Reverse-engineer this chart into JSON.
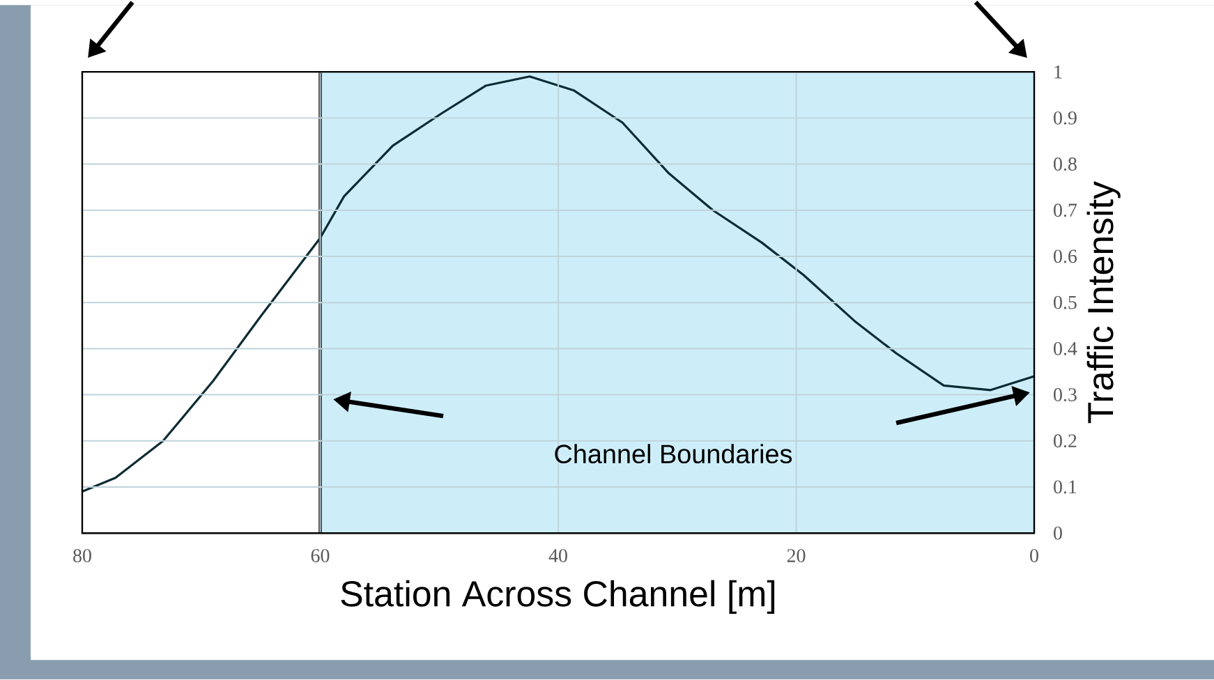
{
  "chart_data": {
    "type": "line",
    "xlabel": "Station Across Channel [m]",
    "ylabel": "Traffic Intensity",
    "x": [
      80,
      77.2,
      73.2,
      69,
      65,
      60,
      58,
      53.9,
      49.8,
      46.1,
      42.4,
      38.7,
      34.6,
      30.7,
      27,
      22.9,
      19.4,
      15.1,
      11.6,
      7.6,
      3.7,
      0
    ],
    "series": [
      {
        "color": "#0d2b33",
        "values": [
          0.09,
          0.12,
          0.2,
          0.33,
          0.47,
          0.64,
          0.73,
          0.84,
          0.91,
          0.97,
          0.99,
          0.96,
          0.89,
          0.78,
          0.7,
          0.63,
          0.56,
          0.46,
          0.39,
          0.32,
          0.31,
          0.34
        ]
      }
    ],
    "xlim": [
      80,
      0
    ],
    "xticks": [
      80,
      60,
      40,
      20,
      0
    ],
    "ylim": [
      0,
      1
    ],
    "yticks": [
      0,
      0.1,
      0.2,
      0.3,
      0.4,
      0.5,
      0.6,
      0.7,
      0.8,
      0.9,
      1
    ],
    "grid": true,
    "marker": "none",
    "line_style": "solid",
    "ref_lines": [
      {
        "axis": "x",
        "value": 60,
        "color": "#000000"
      }
    ],
    "bands": [
      {
        "axis": "x",
        "from": 60,
        "to": 0,
        "color": "#cdeef9"
      }
    ],
    "annotations": [
      "Channel Boundaries"
    ]
  }
}
